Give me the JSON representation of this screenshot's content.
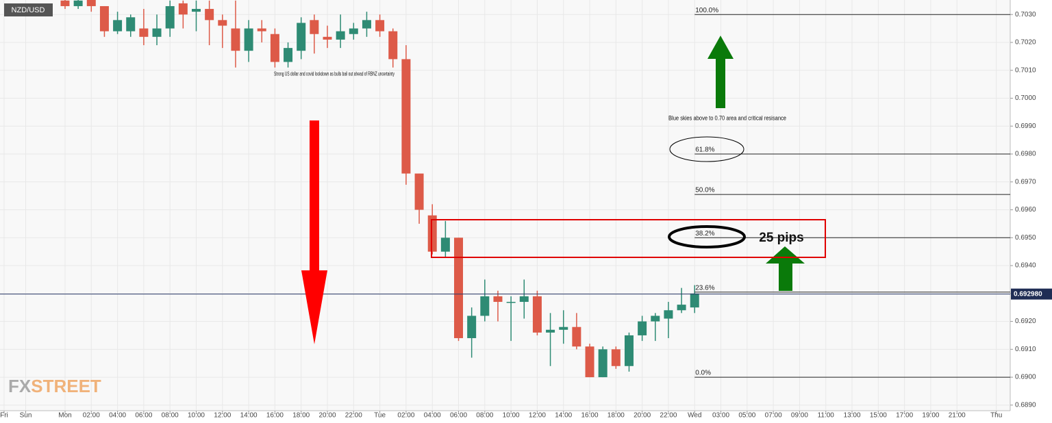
{
  "chart_data": {
    "type": "candlestick",
    "symbol": "NZD/USD",
    "logo_prefix": "FX",
    "logo_suffix": "STREET",
    "up_color": "#2e8b74",
    "down_color": "#dd5a48",
    "grid": true,
    "x": [
      0,
      1,
      2,
      3,
      4,
      5,
      6,
      7,
      8,
      9,
      10,
      11,
      12,
      13,
      14,
      15,
      16,
      17,
      18,
      19,
      20,
      21,
      22,
      23,
      24,
      25,
      26,
      27,
      28,
      29,
      30,
      31,
      32,
      33,
      34,
      35,
      36,
      37,
      38,
      39,
      40,
      41,
      42,
      43,
      44,
      45,
      46,
      47,
      48
    ],
    "open": [
      0.7035,
      0.7033,
      0.7036,
      0.7033,
      0.7024,
      0.7024,
      0.7025,
      0.7022,
      0.7025,
      0.7034,
      0.7031,
      0.7032,
      0.7028,
      0.7025,
      0.7017,
      0.7025,
      0.7023,
      0.7013,
      0.7017,
      0.7028,
      0.7022,
      0.7021,
      0.7023,
      0.7025,
      0.7028,
      0.7024,
      0.7014,
      0.6973,
      0.6958,
      0.6945,
      0.695,
      0.6914,
      0.6922,
      0.6929,
      0.6927,
      0.6927,
      0.6929,
      0.6916,
      0.6917,
      0.6918,
      0.6911,
      0.69,
      0.691,
      0.6904,
      0.6915,
      0.692,
      0.6921,
      0.6924,
      0.6925
    ],
    "high": [
      0.7036,
      0.7036,
      0.7036,
      0.7033,
      0.7031,
      0.703,
      0.7032,
      0.703,
      0.7035,
      0.7035,
      0.7035,
      0.7035,
      0.703,
      0.7035,
      0.7028,
      0.7028,
      0.7025,
      0.702,
      0.7029,
      0.703,
      0.7026,
      0.703,
      0.7027,
      0.7031,
      0.703,
      0.7025,
      0.7019,
      0.6973,
      0.6962,
      0.6956,
      0.695,
      0.6925,
      0.6935,
      0.6931,
      0.6929,
      0.6935,
      0.6931,
      0.6923,
      0.6924,
      0.6923,
      0.6912,
      0.6911,
      0.6911,
      0.6916,
      0.6922,
      0.6923,
      0.6927,
      0.6932,
      0.6933
    ],
    "low": [
      0.7032,
      0.7032,
      0.7031,
      0.7022,
      0.7023,
      0.7022,
      0.7019,
      0.7019,
      0.7022,
      0.7025,
      0.7024,
      0.7019,
      0.7018,
      0.7011,
      0.7013,
      0.702,
      0.7011,
      0.7011,
      0.7014,
      0.7016,
      0.7018,
      0.7018,
      0.7021,
      0.7022,
      0.7022,
      0.7011,
      0.6969,
      0.6955,
      0.6944,
      0.6943,
      0.6913,
      0.6907,
      0.692,
      0.692,
      0.6913,
      0.6921,
      0.6915,
      0.6904,
      0.6912,
      0.691,
      0.69,
      0.69,
      0.6903,
      0.6902,
      0.6913,
      0.6913,
      0.6914,
      0.6923,
      0.6923
    ],
    "close": [
      0.7033,
      0.7035,
      0.7033,
      0.7024,
      0.7028,
      0.7029,
      0.7022,
      0.7025,
      0.7033,
      0.703,
      0.7032,
      0.7028,
      0.7026,
      0.7017,
      0.7025,
      0.7024,
      0.7013,
      0.7018,
      0.7027,
      0.7023,
      0.7021,
      0.7024,
      0.7025,
      0.7028,
      0.7024,
      0.7014,
      0.6973,
      0.696,
      0.6945,
      0.695,
      0.6914,
      0.6922,
      0.6929,
      0.6927,
      0.6927,
      0.6929,
      0.6916,
      0.6917,
      0.6918,
      0.6911,
      0.69,
      0.691,
      0.6904,
      0.6915,
      0.692,
      0.6922,
      0.6924,
      0.6926,
      0.693
    ],
    "xlim": [
      -4.96,
      72.06
    ],
    "xticks": [
      {
        "value": -4.65,
        "label": "Fri"
      },
      {
        "value": -3,
        "label": "Sun"
      },
      {
        "value": 0,
        "label": "Mon"
      },
      {
        "value": 2,
        "label": "02:00"
      },
      {
        "value": 4,
        "label": "04:00"
      },
      {
        "value": 6,
        "label": "06:00"
      },
      {
        "value": 8,
        "label": "08:00"
      },
      {
        "value": 10,
        "label": "10:00"
      },
      {
        "value": 12,
        "label": "12:00"
      },
      {
        "value": 14,
        "label": "14:00"
      },
      {
        "value": 16,
        "label": "16:00"
      },
      {
        "value": 18,
        "label": "18:00"
      },
      {
        "value": 20,
        "label": "20:00"
      },
      {
        "value": 22,
        "label": "22:00"
      },
      {
        "value": 24,
        "label": "Tue"
      },
      {
        "value": 26,
        "label": "02:00"
      },
      {
        "value": 28,
        "label": "04:00"
      },
      {
        "value": 30,
        "label": "06:00"
      },
      {
        "value": 32,
        "label": "08:00"
      },
      {
        "value": 34,
        "label": "10:00"
      },
      {
        "value": 36,
        "label": "12:00"
      },
      {
        "value": 38,
        "label": "14:00"
      },
      {
        "value": 40,
        "label": "16:00"
      },
      {
        "value": 42,
        "label": "18:00"
      },
      {
        "value": 44,
        "label": "20:00"
      },
      {
        "value": 46,
        "label": "22:00"
      },
      {
        "value": 48,
        "label": "Wed"
      },
      {
        "value": 50,
        "label": "03:00"
      },
      {
        "value": 52,
        "label": "05:00"
      },
      {
        "value": 54,
        "label": "07:00"
      },
      {
        "value": 56,
        "label": "09:00"
      },
      {
        "value": 58,
        "label": "11:00"
      },
      {
        "value": 60,
        "label": "13:00"
      },
      {
        "value": 62,
        "label": "15:00"
      },
      {
        "value": 64,
        "label": "17:00"
      },
      {
        "value": 66,
        "label": "19:00"
      },
      {
        "value": 68,
        "label": "21:00"
      },
      {
        "value": 71,
        "label": "Thu"
      }
    ],
    "ylim": [
      0.6888,
      0.70352
    ],
    "yticks": [
      {
        "value": 0.689,
        "label": "0.6890"
      },
      {
        "value": 0.69,
        "label": "0.6900"
      },
      {
        "value": 0.691,
        "label": "0.6910"
      },
      {
        "value": 0.692,
        "label": "0.6920"
      },
      {
        "value": 0.693,
        "label": "0.6930"
      },
      {
        "value": 0.694,
        "label": "0.6940"
      },
      {
        "value": 0.695,
        "label": "0.6950"
      },
      {
        "value": 0.696,
        "label": "0.6960"
      },
      {
        "value": 0.697,
        "label": "0.6970"
      },
      {
        "value": 0.698,
        "label": "0.6980"
      },
      {
        "value": 0.699,
        "label": "0.6990"
      },
      {
        "value": 0.7,
        "label": "0.7000"
      },
      {
        "value": 0.701,
        "label": "0.7010"
      },
      {
        "value": 0.702,
        "label": "0.7020"
      },
      {
        "value": 0.703,
        "label": "0.7030"
      }
    ],
    "current_price": {
      "value": 0.69298,
      "label": "0.692980"
    },
    "levels": [
      {
        "label": "100.0%",
        "value": 0.703
      },
      {
        "label": "61.8%",
        "value": 0.698
      },
      {
        "label": "50.0%",
        "value": 0.69655
      },
      {
        "label": "38.2%",
        "value": 0.695
      },
      {
        "label": "23.6%",
        "value": 0.69305
      },
      {
        "label": "0.0%",
        "value": 0.69
      }
    ],
    "annotations": [
      "Strong US dollar and covid lockdown as bulls bail out  ahead of RBNZ uncertainty",
      "Blue skies above  to 0.70 area and critical resisance",
      "25 pips"
    ]
  }
}
